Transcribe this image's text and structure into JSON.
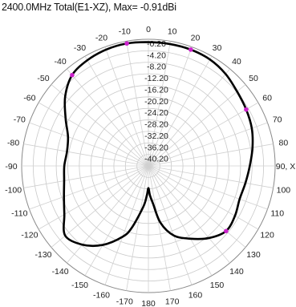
{
  "title": "2400.0MHz Total(E1-XZ), Max= -0.91dBi",
  "chart_data": {
    "type": "polar-line",
    "title": "2400.0MHz Total(E1-XZ), Max= -0.91dBi",
    "angle_unit": "deg",
    "angle_ticks": [
      0,
      10,
      20,
      30,
      40,
      50,
      60,
      70,
      80,
      90,
      100,
      110,
      120,
      130,
      140,
      150,
      160,
      170,
      180,
      -170,
      -160,
      -150,
      -140,
      -130,
      -120,
      -110,
      -100,
      -90,
      -80,
      -70,
      -60,
      -50,
      -40,
      -30,
      -20,
      -10
    ],
    "angle_tick_labels": [
      "0",
      "10",
      "20",
      "30",
      "40",
      "50",
      "60",
      "70",
      "80",
      "90, X",
      "100",
      "110",
      "120",
      "130",
      "140",
      "150",
      "160",
      "170",
      "180",
      "-170",
      "-160",
      "-150",
      "-140",
      "-130",
      "-120",
      "-110",
      "-100",
      "-90",
      "-80",
      "-70",
      "-60",
      "-50",
      "-40",
      "-30",
      "-20",
      "-10"
    ],
    "radial_ticks": [
      -0.2,
      -4.2,
      -8.2,
      -12.2,
      -16.2,
      -20.2,
      -24.2,
      -28.2,
      -32.2,
      -36.2,
      -40.2
    ],
    "radial_tick_labels": [
      "-0.20",
      "-4.20",
      "-8.20",
      "-12.20",
      "-16.20",
      "-20.20",
      "-24.20",
      "-28.20",
      "-32.20",
      "-36.20",
      "-40.20"
    ],
    "rlim": [
      -44.2,
      -0.2
    ],
    "grid": true,
    "series": [
      {
        "color": "#000000",
        "theta": [
          0,
          10,
          20,
          30,
          40,
          50,
          60,
          70,
          80,
          90,
          100,
          110,
          120,
          130,
          140,
          150,
          160,
          168,
          173,
          177,
          180,
          -177,
          -173,
          -165,
          -160,
          -150,
          -140,
          -130,
          -120,
          -110,
          -100,
          -90,
          -80,
          -70,
          -60,
          -50,
          -40,
          -30,
          -20,
          -10
        ],
        "r": [
          -1.2,
          -1.2,
          -1.2,
          -1.5,
          -2.5,
          -4.0,
          -5.0,
          -6.0,
          -7.5,
          -9.0,
          -10.0,
          -10.5,
          -9.5,
          -9.0,
          -11.5,
          -15.0,
          -18.5,
          -24.0,
          -31.0,
          -34.0,
          -36.5,
          -34.0,
          -30.0,
          -22.0,
          -18.0,
          -12.5,
          -8.5,
          -6.5,
          -10.5,
          -13.0,
          -14.5,
          -15.0,
          -15.5,
          -14.5,
          -11.0,
          -6.5,
          -3.0,
          -1.8,
          -1.2,
          -1.0
        ]
      }
    ],
    "markers": [
      {
        "theta": -10,
        "r": -1.0,
        "color": "#cc22cc"
      },
      {
        "theta": 20,
        "r": -1.2,
        "color": "#cc22cc"
      },
      {
        "theta": 60,
        "r": -5.0,
        "color": "#cc22cc"
      },
      {
        "theta": 130,
        "r": -9.0,
        "color": "#cc22cc"
      },
      {
        "theta": -40,
        "r": -3.0,
        "color": "#cc22cc"
      }
    ]
  }
}
